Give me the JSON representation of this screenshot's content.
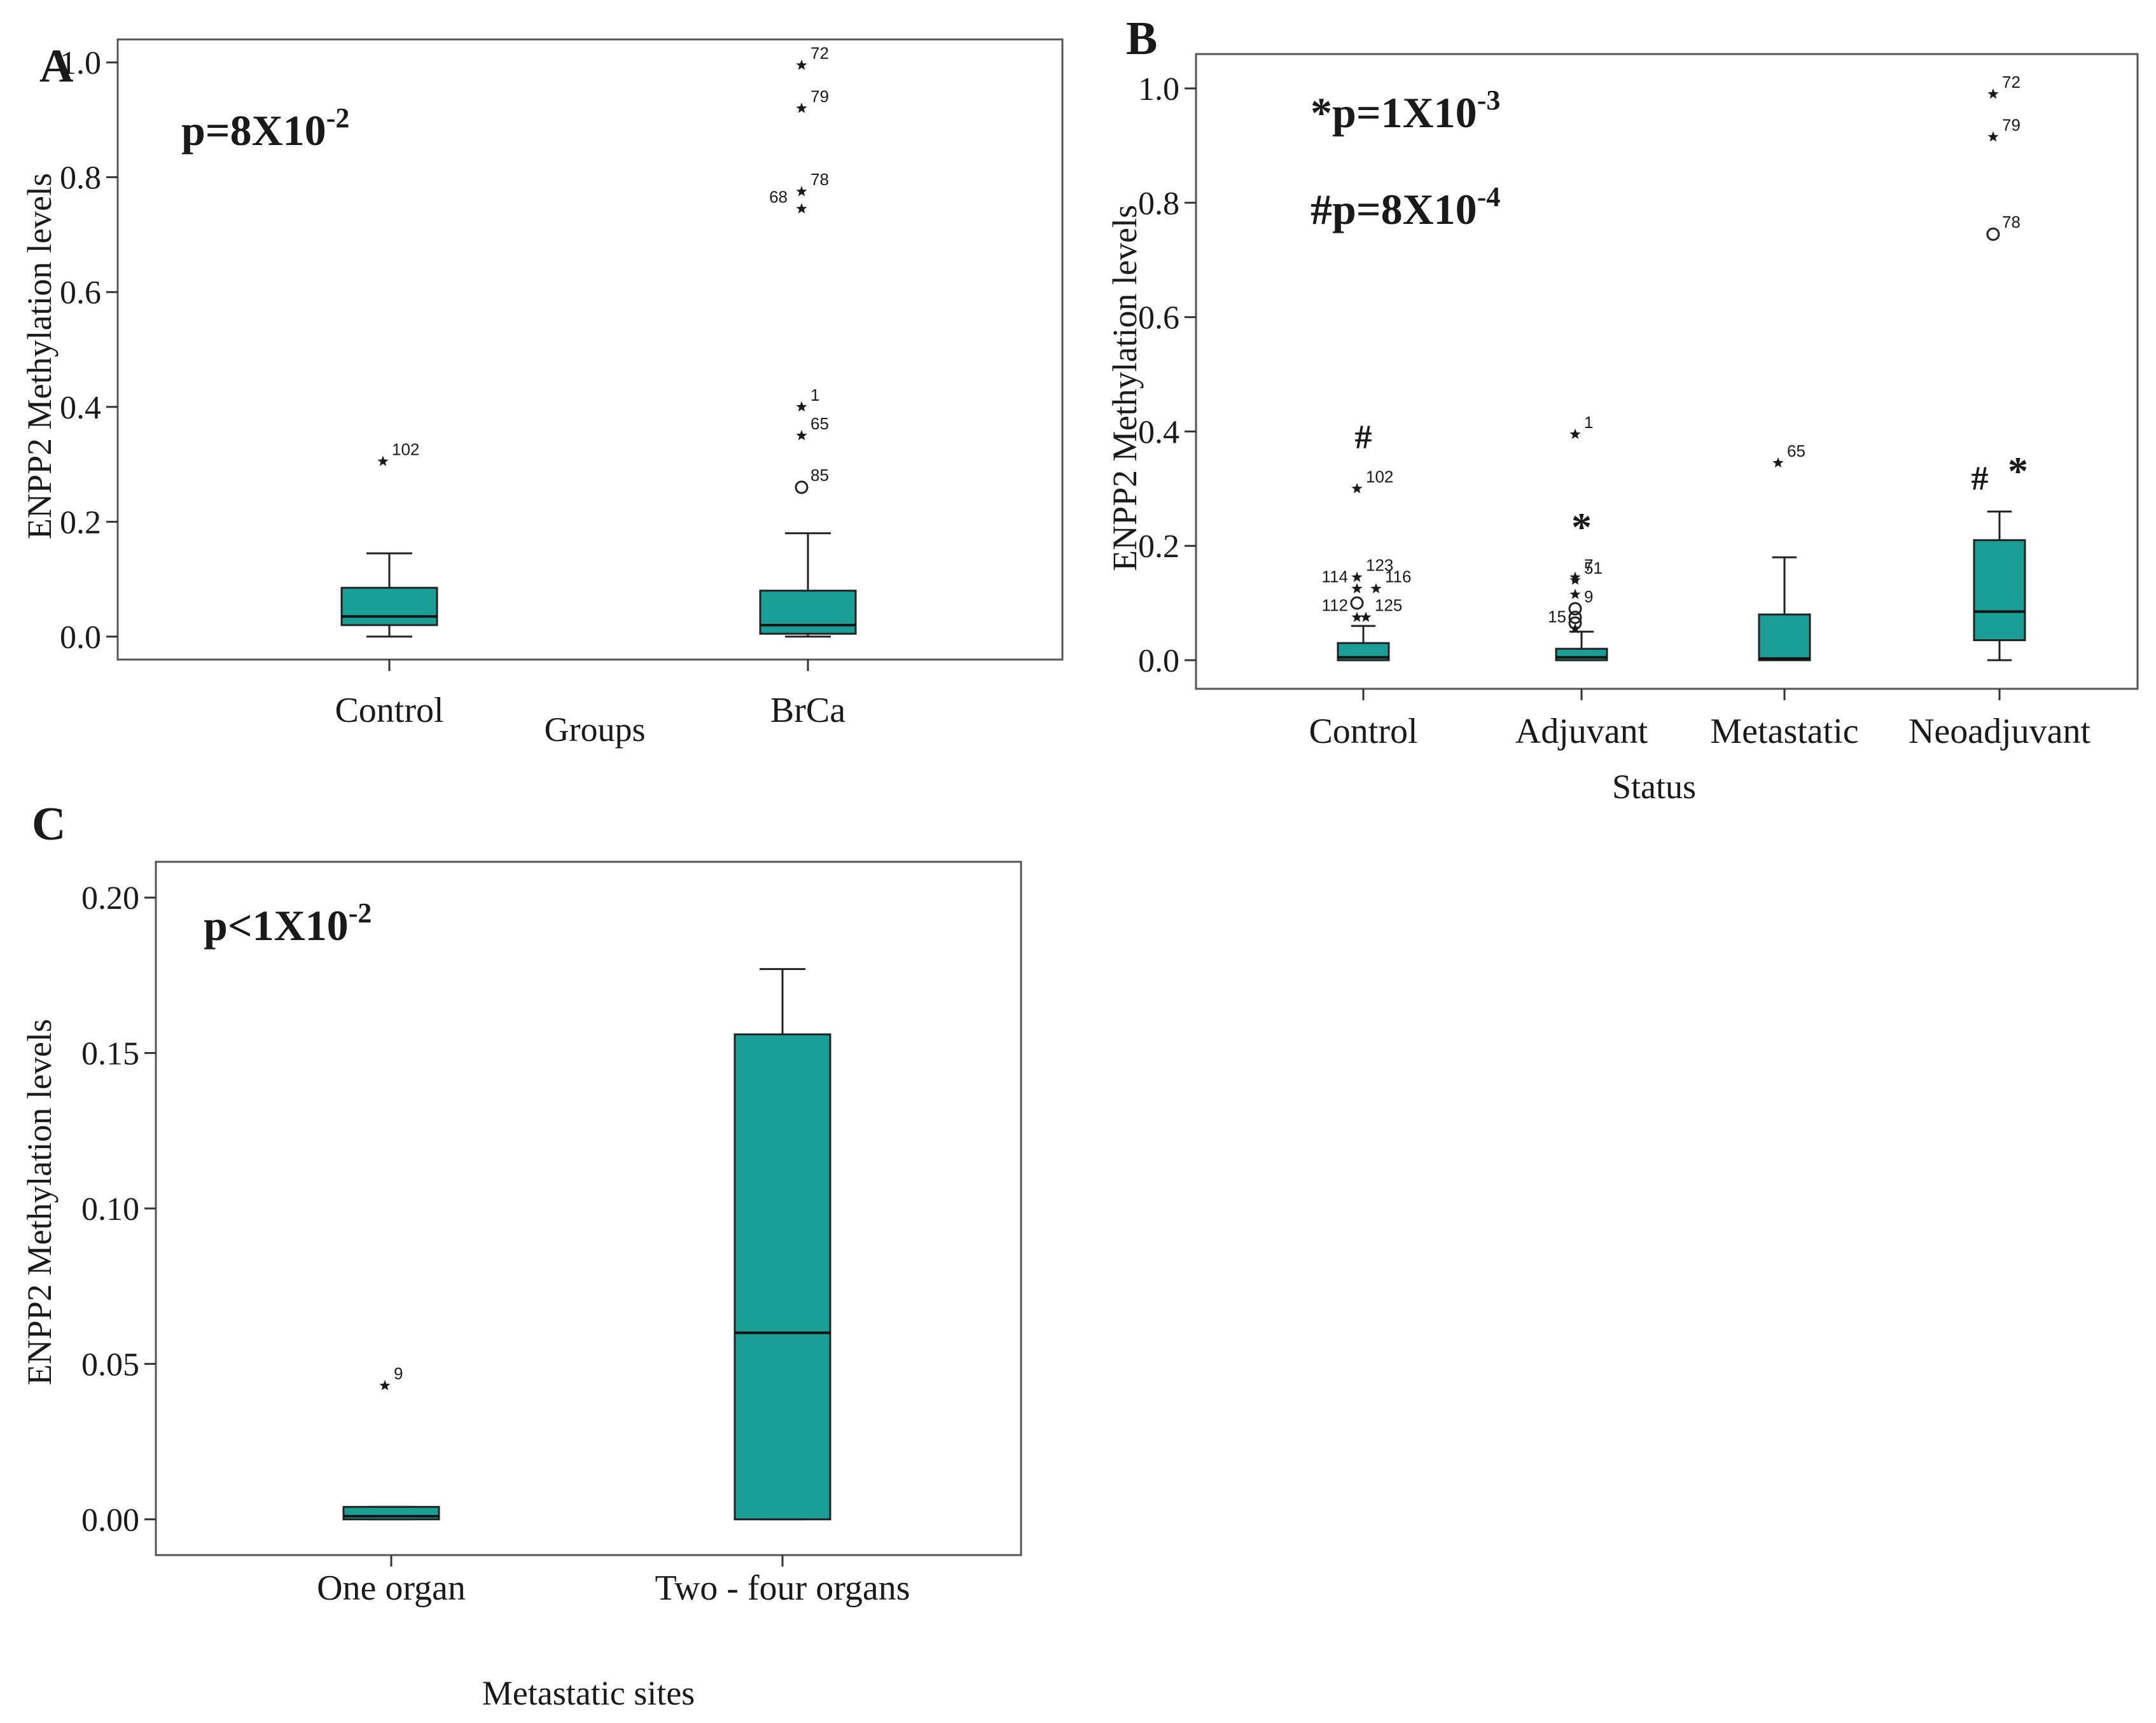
{
  "chart_data": [
    {
      "panel_label": "A",
      "type": "box",
      "title": "",
      "xlabel": "Groups",
      "ylabel": "ENPP2 Methylation levels",
      "ylim": [
        -0.04,
        1.04
      ],
      "yticks": [
        0.0,
        0.2,
        0.4,
        0.6,
        0.8,
        1.0
      ],
      "ytick_labels": [
        "0.0",
        "0.2",
        "0.4",
        "0.6",
        "0.8",
        "1.0"
      ],
      "grid": false,
      "annotations": {
        "p_value": {
          "base": "p=8X10",
          "exp": "-2"
        }
      },
      "box_color": "#1b9e96",
      "categories": [
        "Control",
        "BrCa"
      ],
      "boxes": [
        {
          "min": 0.0,
          "q1": 0.02,
          "median": 0.035,
          "q3": 0.085,
          "max": 0.145,
          "outliers": [
            {
              "y": 0.305,
              "label": "102",
              "marker": "star"
            }
          ]
        },
        {
          "min": 0.0,
          "q1": 0.005,
          "median": 0.02,
          "q3": 0.08,
          "max": 0.18,
          "outliers": [
            {
              "y": 0.995,
              "label": "72",
              "marker": "star"
            },
            {
              "y": 0.92,
              "label": "79",
              "marker": "star"
            },
            {
              "y": 0.775,
              "label": "78",
              "marker": "star"
            },
            {
              "y": 0.745,
              "label": "68",
              "marker": "star"
            },
            {
              "y": 0.4,
              "label": "1",
              "marker": "star"
            },
            {
              "y": 0.35,
              "label": "65",
              "marker": "star"
            },
            {
              "y": 0.26,
              "label": "85",
              "marker": "circle"
            }
          ]
        }
      ]
    },
    {
      "panel_label": "B",
      "type": "box",
      "title": "",
      "xlabel": "Status",
      "ylabel": "ENPP2 Methylation levels",
      "ylim": [
        -0.05,
        1.06
      ],
      "yticks": [
        0.0,
        0.2,
        0.4,
        0.6,
        0.8,
        1.0
      ],
      "ytick_labels": [
        "0.0",
        "0.2",
        "0.4",
        "0.6",
        "0.8",
        "1.0"
      ],
      "grid": false,
      "annotations": {
        "p_value_1": {
          "base": "*p=1X10",
          "exp": "-3"
        },
        "p_value_2": {
          "base": "#p=8X10",
          "exp": "-4"
        },
        "marker_hash_control": "#",
        "marker_star_adjuvant": "*",
        "marker_hash_neo": "#",
        "marker_star_neo": "*"
      },
      "box_color": "#1b9e96",
      "categories": [
        "Control",
        "Adjuvant",
        "Metastatic",
        "Neoadjuvant"
      ],
      "boxes": [
        {
          "min": 0.0,
          "q1": 0.0,
          "median": 0.005,
          "q3": 0.03,
          "max": 0.06,
          "outliers": [
            {
              "y": 0.3,
              "label": "102",
              "marker": "star"
            },
            {
              "y": 0.145,
              "label": "123",
              "marker": "star"
            },
            {
              "y": 0.125,
              "label": "114",
              "marker": "star"
            },
            {
              "y": 0.125,
              "label": "116",
              "marker": "star"
            },
            {
              "y": 0.1,
              "label": "",
              "marker": "circle"
            },
            {
              "y": 0.075,
              "label": "112",
              "marker": "star"
            },
            {
              "y": 0.075,
              "label": "125",
              "marker": "star"
            }
          ]
        },
        {
          "min": 0.0,
          "q1": 0.0,
          "median": 0.005,
          "q3": 0.02,
          "max": 0.05,
          "outliers": [
            {
              "y": 0.395,
              "label": "1",
              "marker": "star"
            },
            {
              "y": 0.145,
              "label": "7",
              "marker": "star"
            },
            {
              "y": 0.14,
              "label": "51",
              "marker": "star"
            },
            {
              "y": 0.115,
              "label": "",
              "marker": "star"
            },
            {
              "y": 0.09,
              "label": "9",
              "marker": "circle"
            },
            {
              "y": 0.075,
              "label": "",
              "marker": "circle"
            },
            {
              "y": 0.065,
              "label": "",
              "marker": "circle"
            },
            {
              "y": 0.055,
              "label": "15",
              "marker": "star"
            }
          ]
        },
        {
          "min": 0.0,
          "q1": 0.0,
          "median": 0.003,
          "q3": 0.08,
          "max": 0.18,
          "outliers": [
            {
              "y": 0.345,
              "label": "65",
              "marker": "star"
            }
          ]
        },
        {
          "min": 0.0,
          "q1": 0.035,
          "median": 0.085,
          "q3": 0.21,
          "max": 0.26,
          "outliers": [
            {
              "y": 0.99,
              "label": "72",
              "marker": "star"
            },
            {
              "y": 0.915,
              "label": "79",
              "marker": "star"
            },
            {
              "y": 0.745,
              "label": "78",
              "marker": "circle"
            }
          ]
        }
      ]
    },
    {
      "panel_label": "C",
      "type": "box",
      "title": "",
      "xlabel": "Metastatic sites",
      "ylabel": "ENPP2 Methylation levels",
      "ylim": [
        -0.0115,
        0.2115
      ],
      "yticks": [
        0.0,
        0.05,
        0.1,
        0.15,
        0.2
      ],
      "ytick_labels": [
        "0.00",
        "0.05",
        "0.10",
        "0.15",
        "0.20"
      ],
      "grid": false,
      "annotations": {
        "p_value": {
          "base": "p<1X10",
          "exp": "-2"
        }
      },
      "box_color": "#1b9e96",
      "categories": [
        "One organ",
        "Two - four organs"
      ],
      "boxes": [
        {
          "min": 0.0,
          "q1": 0.0,
          "median": 0.001,
          "q3": 0.004,
          "max": 0.004,
          "outliers": [
            {
              "y": 0.043,
              "label": "9",
              "marker": "star"
            }
          ]
        },
        {
          "min": 0.0,
          "q1": 0.0,
          "median": 0.06,
          "q3": 0.156,
          "max": 0.177,
          "outliers": []
        }
      ]
    }
  ]
}
